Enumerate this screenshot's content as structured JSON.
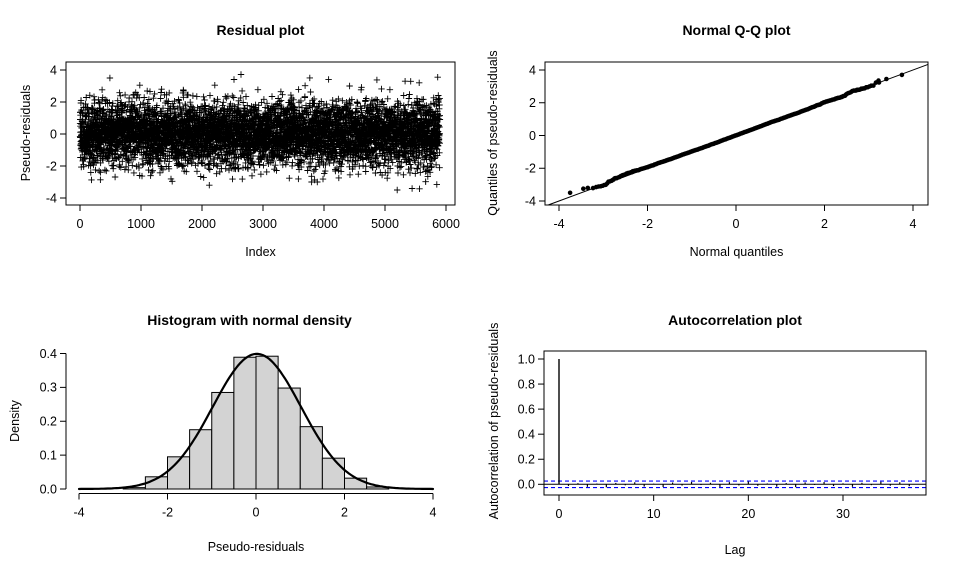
{
  "page": {
    "background": "#ffffff",
    "text_color": "#000000"
  },
  "chart_data": [
    {
      "type": "scatter",
      "title": "Residual plot",
      "xlabel": "Index",
      "ylabel": "Pseudo-residuals",
      "marker": "plus",
      "point_color": "#000000",
      "n_points": 5900,
      "xlim": [
        0,
        6000
      ],
      "ylim": [
        -4,
        4
      ],
      "xticks": [
        0,
        1000,
        2000,
        3000,
        4000,
        5000,
        6000
      ],
      "xtick_labels": [
        "0",
        "1000",
        "2000",
        "3000",
        "4000",
        "5000",
        "6000"
      ],
      "yticks": [
        -4,
        -2,
        0,
        2,
        4
      ],
      "ytick_labels": [
        "-4",
        "-2",
        "0",
        "2",
        "4"
      ],
      "y_distribution": {
        "mean": 0,
        "sd": 1,
        "observed_min": -3.5,
        "observed_max": 3.7
      },
      "outliers": [
        [
          490,
          3.5
        ],
        [
          980,
          3.05
        ],
        [
          2210,
          3.05
        ],
        [
          2640,
          3.72
        ],
        [
          4420,
          3.0
        ],
        [
          5330,
          3.3
        ],
        [
          5560,
          3.2
        ],
        [
          2120,
          -3.2
        ],
        [
          3890,
          -3.0
        ],
        [
          5200,
          -3.5
        ],
        [
          5850,
          -3.15
        ]
      ],
      "seed": 20240605,
      "box": true
    },
    {
      "type": "scatter",
      "title": "Normal Q-Q plot",
      "xlabel": "Normal quantiles",
      "ylabel": "Quantiles of pseudo-residuals",
      "marker": "dot",
      "point_color": "#000000",
      "n_points": 5900,
      "xlim": [
        -4,
        4
      ],
      "ylim": [
        -4,
        4
      ],
      "xticks": [
        -4,
        -2,
        0,
        2,
        4
      ],
      "xtick_labels": [
        "-4",
        "-2",
        "0",
        "2",
        "4"
      ],
      "yticks": [
        -4,
        -2,
        0,
        2,
        4
      ],
      "ytick_labels": [
        "-4",
        "-2",
        "0",
        "2",
        "4"
      ],
      "reference_line": {
        "slope": 1,
        "intercept": 0,
        "color": "#000000"
      },
      "lower_tail_points": [
        [
          -3.75,
          -3.5
        ],
        [
          -3.45,
          -3.25
        ],
        [
          -3.35,
          -3.2
        ]
      ],
      "upper_tail_points": [
        [
          3.22,
          3.35
        ],
        [
          3.4,
          3.45
        ],
        [
          3.75,
          3.7
        ]
      ],
      "seed": 987,
      "box": true
    },
    {
      "type": "histogram",
      "title": "Histogram with normal density",
      "xlabel": "Pseudo-residuals",
      "ylabel": "Density",
      "bar_fill": "#d3d3d3",
      "bar_border": "#000000",
      "bin_edges": [
        -3,
        -2.5,
        -2,
        -1.5,
        -1,
        -0.5,
        0,
        0.5,
        1,
        1.5,
        2,
        2.5,
        3
      ],
      "densities": [
        0.004,
        0.036,
        0.095,
        0.175,
        0.285,
        0.389,
        0.392,
        0.298,
        0.184,
        0.091,
        0.032,
        0.006
      ],
      "curve": {
        "shape": "normal",
        "mean": 0.02,
        "sd": 1.0,
        "peak": 0.399,
        "color": "#000000"
      },
      "xlim": [
        -4,
        4
      ],
      "ylim": [
        0,
        0.4
      ],
      "xticks": [
        -4,
        -2,
        0,
        2,
        4
      ],
      "xtick_labels": [
        "-4",
        "-2",
        "0",
        "2",
        "4"
      ],
      "yticks": [
        0,
        0.1,
        0.2,
        0.3,
        0.4
      ],
      "ytick_labels": [
        "0.0",
        "0.1",
        "0.2",
        "0.3",
        "0.4"
      ],
      "box": false
    },
    {
      "type": "bar",
      "title": "Autocorrelation plot",
      "xlabel": "Lag",
      "ylabel": "Autocorrelation of pseudo-residuals",
      "bar_color": "#000000",
      "max_lag": 37,
      "values": [
        1.0,
        -0.013,
        0.009,
        -0.02,
        0.006,
        -0.024,
        0.011,
        -0.008,
        0.016,
        -0.018,
        0.005,
        -0.022,
        0.014,
        -0.01,
        0.019,
        -0.006,
        0.012,
        -0.021,
        0.017,
        -0.009,
        0.022,
        -0.012,
        0.007,
        -0.019,
        0.01,
        -0.023,
        0.015,
        -0.005,
        0.018,
        -0.014,
        0.008,
        -0.02,
        0.012,
        -0.007,
        0.021,
        -0.011,
        0.016,
        -0.015
      ],
      "confidence_bound": 0.026,
      "confidence_color": "#0000ff",
      "confidence_style": "dashed",
      "zero_line": true,
      "xlim": [
        0,
        37
      ],
      "ylim": [
        -0.06,
        1.05
      ],
      "xticks": [
        0,
        10,
        20,
        30
      ],
      "xtick_labels": [
        "0",
        "10",
        "20",
        "30"
      ],
      "yticks": [
        0,
        0.2,
        0.4,
        0.6,
        0.8,
        1.0
      ],
      "ytick_labels": [
        "0.0",
        "0.2",
        "0.4",
        "0.6",
        "0.8",
        "1.0"
      ],
      "box": true
    }
  ]
}
